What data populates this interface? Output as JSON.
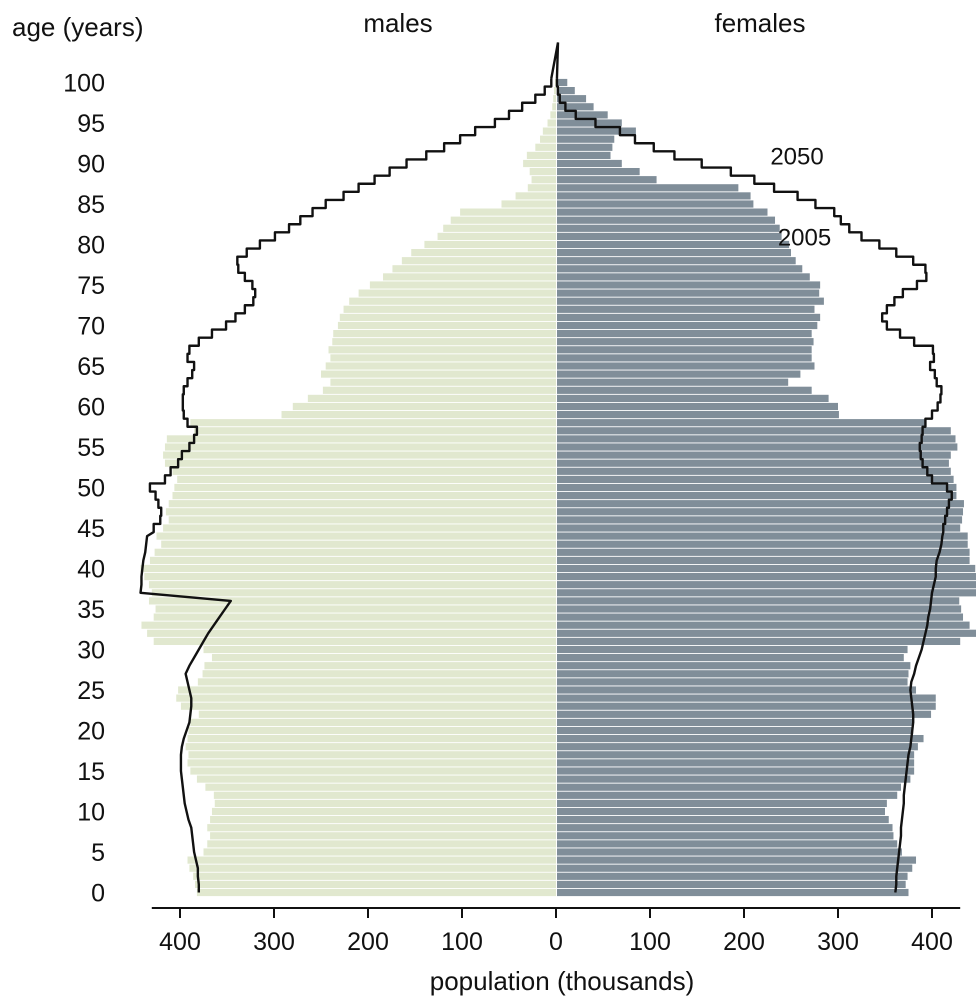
{
  "chart_data": {
    "type": "bar",
    "orientation": "horizontal",
    "layout": "population-pyramid",
    "title": "",
    "xlabel": "population (thousands)",
    "ylabel": "age (years)",
    "left_side_label": "males",
    "right_side_label": "females",
    "xlim": [
      -430,
      430
    ],
    "ylim": [
      0,
      101
    ],
    "x_ticks": [
      -400,
      -300,
      -200,
      -100,
      0,
      100,
      200,
      300,
      400
    ],
    "x_tick_labels": [
      "400",
      "300",
      "200",
      "100",
      "0",
      "100",
      "200",
      "300",
      "400"
    ],
    "y_ticks": [
      0,
      5,
      10,
      15,
      20,
      25,
      30,
      35,
      40,
      45,
      50,
      55,
      60,
      65,
      70,
      75,
      80,
      85,
      90,
      95,
      100
    ],
    "y_tick_labels": [
      "0",
      "5",
      "10",
      "15",
      "20",
      "25",
      "30",
      "35",
      "40",
      "45",
      "50",
      "55",
      "60",
      "65",
      "70",
      "75",
      "80",
      "85",
      "90",
      "95",
      "100"
    ],
    "grid": false,
    "legend": "none",
    "annotations": [
      {
        "text": "2050",
        "x": 228,
        "y": 91
      },
      {
        "text": "2005",
        "x": 236,
        "y": 81
      }
    ],
    "colors": {
      "males_bars": "#e1e8cf",
      "females_bars": "#808e99",
      "outline": "#111111"
    },
    "ages": [
      0,
      1,
      2,
      3,
      4,
      5,
      6,
      7,
      8,
      9,
      10,
      11,
      12,
      13,
      14,
      15,
      16,
      17,
      18,
      19,
      20,
      21,
      22,
      23,
      24,
      25,
      26,
      27,
      28,
      29,
      30,
      31,
      32,
      33,
      34,
      35,
      36,
      37,
      38,
      39,
      40,
      41,
      42,
      43,
      44,
      45,
      46,
      47,
      48,
      49,
      50,
      51,
      52,
      53,
      54,
      55,
      56,
      57,
      58,
      59,
      60,
      61,
      62,
      63,
      64,
      65,
      66,
      67,
      68,
      69,
      70,
      71,
      72,
      73,
      74,
      75,
      76,
      77,
      78,
      79,
      80,
      81,
      82,
      83,
      84,
      85,
      86,
      87,
      88,
      89,
      90,
      91,
      92,
      93,
      94,
      95,
      96,
      97,
      98,
      99,
      100
    ],
    "series": [
      {
        "name": "2005",
        "side": "males",
        "values": [
          382,
          384,
          386,
          390,
          392,
          375,
          371,
          368,
          371,
          368,
          366,
          363,
          364,
          373,
          382,
          389,
          392,
          391,
          394,
          392,
          391,
          389,
          380,
          399,
          404,
          402,
          381,
          376,
          374,
          366,
          375,
          428,
          435,
          441,
          428,
          426,
          433,
          430,
          433,
          438,
          442,
          432,
          427,
          420,
          425,
          418,
          412,
          415,
          412,
          408,
          406,
          403,
          408,
          416,
          418,
          416,
          414,
          385,
          389,
          292,
          280,
          264,
          248,
          240,
          250,
          245,
          240,
          242,
          238,
          237,
          232,
          230,
          226,
          220,
          210,
          198,
          184,
          174,
          164,
          154,
          140,
          126,
          120,
          112,
          102,
          58,
          43,
          30,
          26,
          28,
          35,
          31,
          22,
          17,
          14,
          9,
          6,
          4,
          3,
          2,
          1
        ]
      },
      {
        "name": "2005",
        "side": "females",
        "values": [
          375,
          372,
          374,
          379,
          383,
          368,
          363,
          359,
          358,
          354,
          350,
          352,
          363,
          367,
          377,
          381,
          381,
          381,
          385,
          391,
          380,
          380,
          399,
          404,
          404,
          383,
          374,
          375,
          377,
          370,
          374,
          430,
          447,
          440,
          433,
          431,
          429,
          447,
          447,
          447,
          446,
          440,
          440,
          438,
          438,
          430,
          432,
          433,
          434,
          426,
          426,
          423,
          420,
          418,
          420,
          427,
          425,
          420,
          392,
          301,
          300,
          290,
          272,
          247,
          260,
          275,
          272,
          272,
          274,
          272,
          278,
          281,
          275,
          285,
          280,
          281,
          270,
          262,
          255,
          250,
          248,
          240,
          238,
          233,
          225,
          210,
          207,
          194,
          107,
          89,
          70,
          58,
          60,
          62,
          85,
          70,
          55,
          40,
          32,
          20,
          12
        ]
      },
      {
        "name": "2050",
        "side": "males",
        "values": [
          380,
          380,
          381,
          381,
          383,
          385,
          386,
          387,
          388,
          391,
          393,
          395,
          396,
          397,
          398,
          399,
          399,
          399,
          398,
          396,
          393,
          390,
          389,
          388,
          388,
          390,
          392,
          394,
          390,
          385,
          380,
          375,
          370,
          364,
          358,
          352,
          346,
          442,
          441,
          441,
          440,
          439,
          437,
          436,
          435,
          428,
          421,
          420,
          423,
          426,
          432,
          416,
          410,
          402,
          398,
          390,
          385,
          382,
          392,
          396,
          397,
          397,
          396,
          392,
          387,
          385,
          392,
          390,
          380,
          366,
          351,
          341,
          331,
          322,
          320,
          323,
          331,
          338,
          339,
          329,
          315,
          299,
          284,
          272,
          259,
          245,
          226,
          210,
          193,
          177,
          159,
          138,
          119,
          102,
          86,
          65,
          50,
          36,
          22,
          12,
          5
        ]
      },
      {
        "name": "2050",
        "side": "females",
        "values": [
          361,
          362,
          362,
          363,
          364,
          365,
          366,
          367,
          367,
          368,
          369,
          370,
          370,
          371,
          372,
          373,
          374,
          375,
          377,
          378,
          379,
          380,
          380,
          379,
          378,
          377,
          378,
          381,
          383,
          386,
          389,
          391,
          393,
          395,
          396,
          398,
          399,
          400,
          402,
          404,
          404,
          405,
          408,
          410,
          411,
          412,
          414,
          416,
          418,
          421,
          416,
          400,
          395,
          390,
          388,
          387,
          389,
          390,
          393,
          400,
          406,
          409,
          410,
          405,
          403,
          398,
          402,
          401,
          381,
          366,
          352,
          347,
          352,
          360,
          369,
          384,
          394,
          393,
          380,
          362,
          344,
          325,
          312,
          303,
          296,
          276,
          257,
          232,
          211,
          186,
          155,
          126,
          104,
          84,
          68,
          42,
          21,
          10,
          4,
          2,
          1
        ]
      }
    ]
  }
}
